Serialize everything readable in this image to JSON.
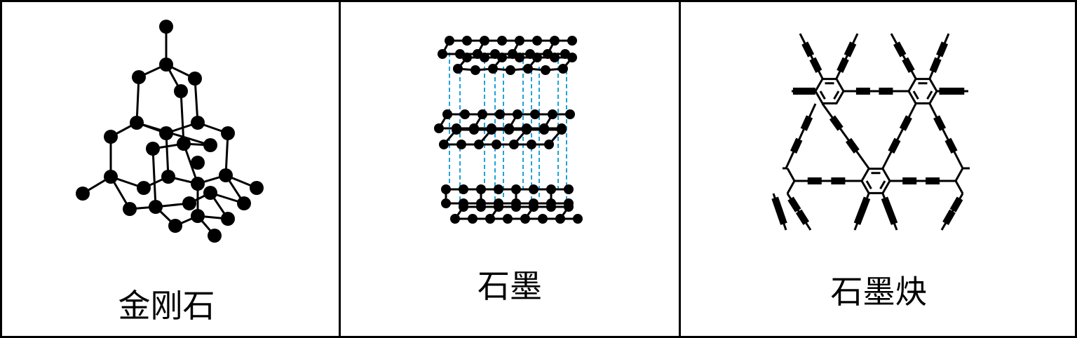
{
  "panels": [
    {
      "caption": "金刚石",
      "structure": "diamond"
    },
    {
      "caption": "石墨",
      "structure": "graphite"
    },
    {
      "caption": "石墨炔",
      "structure": "graphdiyne"
    }
  ],
  "colors": {
    "atom": "#000000",
    "bond": "#000000",
    "interlayer": "#1fa3d8",
    "border": "#000000"
  }
}
